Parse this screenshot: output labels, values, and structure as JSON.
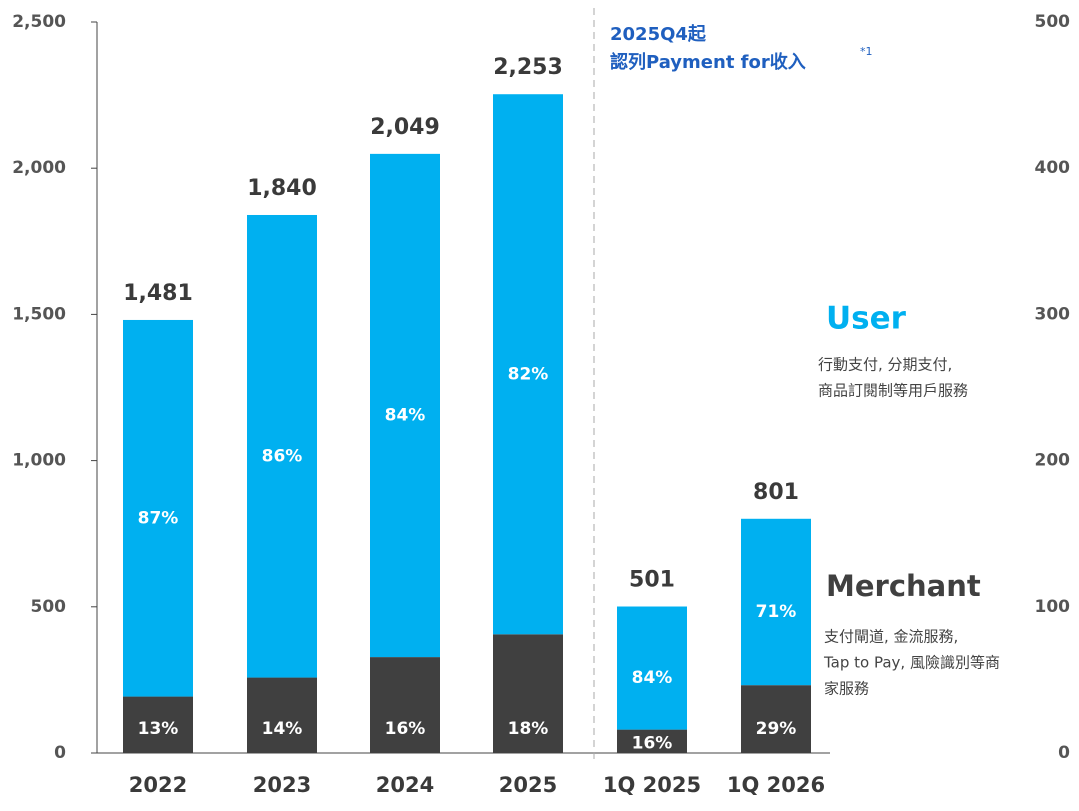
{
  "chart_data": {
    "type": "stacked_bar",
    "categories": [
      "2022",
      "2023",
      "2024",
      "2025",
      "1Q 2025",
      "1Q 2026"
    ],
    "series": [
      {
        "name": "Merchant",
        "color": "#404040",
        "values": [
          193,
          258,
          328,
          406,
          80,
          232
        ],
        "share_labels": [
          "13%",
          "14%",
          "16%",
          "18%",
          "16%",
          "29%"
        ],
        "description": [
          "支付閘道, 金流服務,",
          "Tap to Pay, 風險識別等商",
          "家服務"
        ]
      },
      {
        "name": "User",
        "color": "#00b0f0",
        "values": [
          1288,
          1582,
          1721,
          1847,
          421,
          569
        ],
        "share_labels": [
          "87%",
          "86%",
          "84%",
          "82%",
          "84%",
          "71%"
        ],
        "description": [
          "行動支付, 分期支付,",
          "商品訂閱制等用戶服務"
        ]
      }
    ],
    "totals": [
      1481,
      1840,
      2049,
      2253,
      501,
      801
    ],
    "total_labels": [
      "1,481",
      "1,840",
      "2,049",
      "2,253",
      "501",
      "801"
    ],
    "ylim": [
      0,
      2500
    ],
    "yticks": [
      0,
      500,
      {
        "value": 1000,
        "label": "1,000"
      },
      {
        "value": 1500,
        "label": "1,500"
      },
      {
        "value": 2000,
        "label": "2,000"
      },
      {
        "value": 2500,
        "label": "2,500"
      }
    ],
    "y2lim": [
      0,
      500
    ],
    "y2ticks": [
      0,
      100,
      200,
      300,
      400,
      500
    ],
    "annotation": {
      "lines": [
        "2025Q4起",
        "認列Payment for收入"
      ],
      "superscript": "*1",
      "color": "#1f5fbf"
    }
  }
}
